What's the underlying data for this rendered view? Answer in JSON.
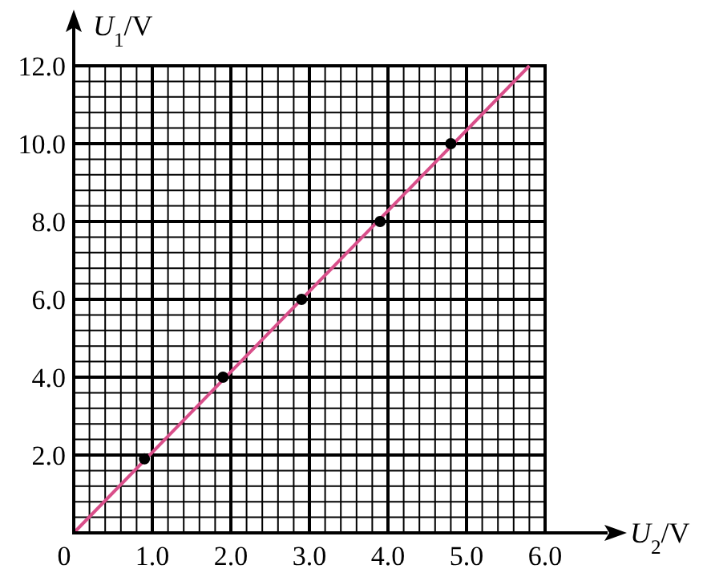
{
  "chart_data": {
    "type": "scatter",
    "xlabel": "U$_{2}$/V",
    "ylabel": "U$_{1}$/V",
    "xlim": [
      0,
      6
    ],
    "ylim": [
      0,
      12
    ],
    "xticks": [
      {
        "value": 0,
        "label": "0"
      },
      {
        "value": 1,
        "label": "1.0"
      },
      {
        "value": 2,
        "label": "2.0"
      },
      {
        "value": 3,
        "label": "3.0"
      },
      {
        "value": 4,
        "label": "4.0"
      },
      {
        "value": 5,
        "label": "5.0"
      },
      {
        "value": 6,
        "label": "6.0"
      }
    ],
    "yticks": [
      {
        "value": 0,
        "label": null
      },
      {
        "value": 2,
        "label": "2.0"
      },
      {
        "value": 4,
        "label": "4.0"
      },
      {
        "value": 6,
        "label": "6.0"
      },
      {
        "value": 8,
        "label": "8.0"
      },
      {
        "value": 10,
        "label": "10.0"
      },
      {
        "value": 12,
        "label": "12.0"
      }
    ],
    "grid": true,
    "series": [
      {
        "type": "line",
        "color": "#d94f8a",
        "x": [
          0,
          5.8
        ],
        "values": [
          0,
          12
        ],
        "marker": "none"
      },
      {
        "type": "scatter",
        "color": "#000000",
        "x": [
          0.9,
          1.9,
          2.9,
          3.9,
          4.8
        ],
        "values": [
          1.9,
          4.0,
          6.0,
          8.0,
          10.0
        ],
        "marker": "circle"
      }
    ]
  }
}
